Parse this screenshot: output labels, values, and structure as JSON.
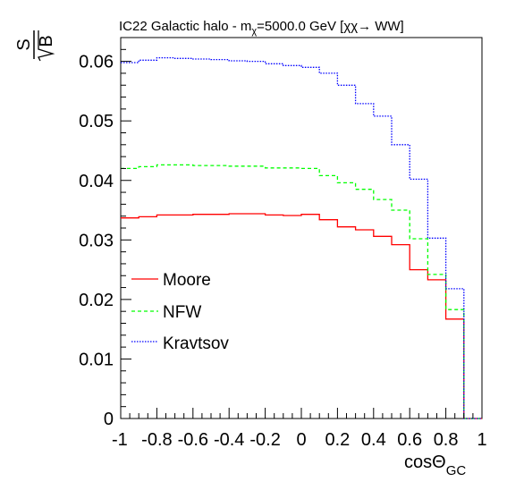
{
  "chart_data": {
    "type": "line",
    "title": {
      "prefix": "IC22 Galactic halo - m",
      "sub": "χ",
      "suffix": "=5000.0 GeV [χχ→ WW]"
    },
    "xlabel": {
      "main": "cosΘ",
      "sub": "GC"
    },
    "ylabel": {
      "numerator": "S",
      "denominator": "B"
    },
    "xlim": [
      -1,
      1
    ],
    "ylim": [
      0,
      0.064
    ],
    "x_ticks": [
      -1,
      -0.8,
      -0.6,
      -0.4,
      -0.2,
      0,
      0.2,
      0.4,
      0.6,
      0.8,
      1
    ],
    "x_tick_labels": [
      "-1",
      "-0.8",
      "-0.6",
      "-0.4",
      "-0.2",
      "0",
      "0.2",
      "0.4",
      "0.6",
      "0.8",
      "1"
    ],
    "y_ticks": [
      0,
      0.01,
      0.02,
      0.03,
      0.04,
      0.05,
      0.06
    ],
    "y_tick_labels": [
      "0",
      "0.01",
      "0.02",
      "0.03",
      "0.04",
      "0.05",
      "0.06"
    ],
    "bin_edges": [
      -1.0,
      -0.9,
      -0.8,
      -0.7,
      -0.6,
      -0.5,
      -0.4,
      -0.3,
      -0.2,
      -0.1,
      0.0,
      0.1,
      0.2,
      0.3,
      0.4,
      0.5,
      0.6,
      0.7,
      0.8,
      0.9,
      1.0
    ],
    "legend_position": "left",
    "series": [
      {
        "name": "Moore",
        "color": "#ff0000",
        "style": "solid",
        "values": [
          0.0337,
          0.0339,
          0.0342,
          0.0342,
          0.0343,
          0.0343,
          0.0344,
          0.0344,
          0.0342,
          0.0341,
          0.0343,
          0.0334,
          0.0322,
          0.0317,
          0.0306,
          0.0292,
          0.025,
          0.0233,
          0.0167,
          0.0
        ]
      },
      {
        "name": "NFW",
        "color": "#00ff00",
        "style": "dashed",
        "values": [
          0.042,
          0.0423,
          0.0426,
          0.0426,
          0.0425,
          0.0425,
          0.0424,
          0.0424,
          0.0421,
          0.0421,
          0.042,
          0.0408,
          0.0396,
          0.0385,
          0.0368,
          0.035,
          0.0302,
          0.0242,
          0.0183,
          0.0
        ]
      },
      {
        "name": "Kravtsov",
        "color": "#0000ff",
        "style": "dotted",
        "values": [
          0.0598,
          0.0602,
          0.0606,
          0.0605,
          0.0604,
          0.0603,
          0.0601,
          0.06,
          0.0596,
          0.0593,
          0.059,
          0.058,
          0.056,
          0.0529,
          0.0508,
          0.046,
          0.0402,
          0.0303,
          0.0218,
          0.0
        ]
      }
    ]
  }
}
